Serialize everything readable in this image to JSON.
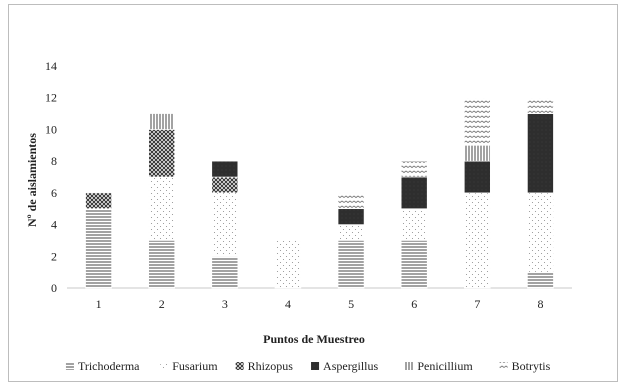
{
  "chart_data": {
    "type": "bar",
    "stacked": true,
    "categories": [
      "1",
      "2",
      "3",
      "4",
      "5",
      "6",
      "7",
      "8"
    ],
    "series": [
      {
        "name": "Trichoderma",
        "values": [
          5,
          3,
          2,
          0,
          3,
          3,
          0,
          1
        ]
      },
      {
        "name": "Fusarium",
        "values": [
          0,
          4,
          4,
          3,
          1,
          2,
          6,
          5
        ]
      },
      {
        "name": "Rhizopus",
        "values": [
          1,
          3,
          1,
          0,
          0,
          0,
          0,
          0
        ]
      },
      {
        "name": "Aspergillus",
        "values": [
          0,
          0,
          1,
          0,
          1,
          2,
          2,
          5
        ]
      },
      {
        "name": "Penicillium",
        "values": [
          0,
          1,
          0,
          0,
          0,
          0,
          1,
          0
        ]
      },
      {
        "name": "Botrytis",
        "values": [
          0,
          0,
          0,
          0,
          1,
          1,
          3,
          1
        ]
      }
    ],
    "title": "",
    "xlabel": "Puntos de Muestreo",
    "ylabel": "Nº de aislamientos",
    "ylim": [
      0,
      14
    ],
    "yticks": [
      0,
      2,
      4,
      6,
      8,
      10,
      12,
      14
    ],
    "grid": false,
    "legend_position": "bottom"
  }
}
